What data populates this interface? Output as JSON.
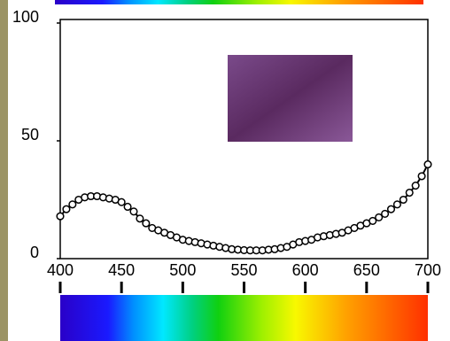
{
  "chart_data": {
    "type": "line",
    "x": [
      400,
      405,
      410,
      415,
      420,
      425,
      430,
      435,
      440,
      445,
      450,
      455,
      460,
      465,
      470,
      475,
      480,
      485,
      490,
      495,
      500,
      505,
      510,
      515,
      520,
      525,
      530,
      535,
      540,
      545,
      550,
      555,
      560,
      565,
      570,
      575,
      580,
      585,
      590,
      595,
      600,
      605,
      610,
      615,
      620,
      625,
      630,
      635,
      640,
      645,
      650,
      655,
      660,
      665,
      670,
      675,
      680,
      685,
      690,
      695,
      700
    ],
    "series": [
      {
        "color": "#000000",
        "values": [
          18,
          21,
          23,
          25,
          26,
          26.5,
          26.5,
          26,
          25.5,
          25,
          24,
          22,
          20,
          17,
          15,
          13,
          12,
          11,
          10,
          9,
          8,
          7.5,
          7,
          6.5,
          6,
          5.5,
          5,
          4.5,
          4,
          3.8,
          3.6,
          3.5,
          3.5,
          3.5,
          3.8,
          4,
          4.5,
          5,
          6,
          7,
          7.5,
          8,
          9,
          9.5,
          10,
          10.5,
          11,
          12,
          13,
          14,
          15,
          16,
          17.5,
          19,
          21,
          23,
          25,
          28,
          31,
          35,
          40
        ]
      }
    ],
    "xlim": [
      400,
      700
    ],
    "xticks": [
      400,
      450,
      500,
      550,
      600,
      650,
      700
    ],
    "ylim": [
      0,
      100
    ],
    "yticks": [
      0,
      50,
      100
    ]
  }
}
